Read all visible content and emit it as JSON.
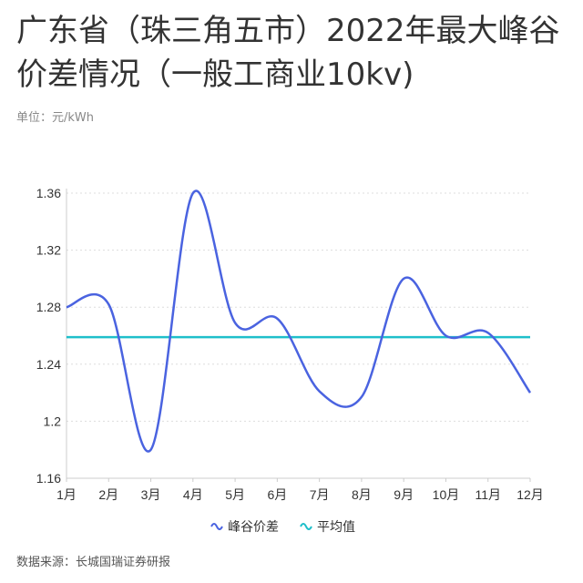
{
  "title": "广东省（珠三角五市）2022年最大峰谷价差情况（一般工商业10kv)",
  "unit_label": "单位：元/kWh",
  "source": "数据来源：长城国瑞证券研报",
  "chart_data": {
    "type": "line",
    "categories": [
      "1月",
      "2月",
      "3月",
      "4月",
      "5月",
      "6月",
      "7月",
      "8月",
      "9月",
      "10月",
      "11月",
      "12月"
    ],
    "series": [
      {
        "name": "峰谷价差",
        "color": "#4a63e0",
        "values": [
          1.28,
          1.282,
          1.18,
          1.36,
          1.269,
          1.272,
          1.221,
          1.217,
          1.3,
          1.26,
          1.262,
          1.22
        ]
      },
      {
        "name": "平均值",
        "color": "#1fbfca",
        "values": [
          1.259,
          1.259,
          1.259,
          1.259,
          1.259,
          1.259,
          1.259,
          1.259,
          1.259,
          1.259,
          1.259,
          1.259
        ]
      }
    ],
    "yticks": [
      "1.16",
      "1.2",
      "1.24",
      "1.28",
      "1.32",
      "1.36"
    ],
    "ylim": [
      1.16,
      1.36
    ],
    "grid": true,
    "legend": "bottom",
    "smooth": true
  }
}
